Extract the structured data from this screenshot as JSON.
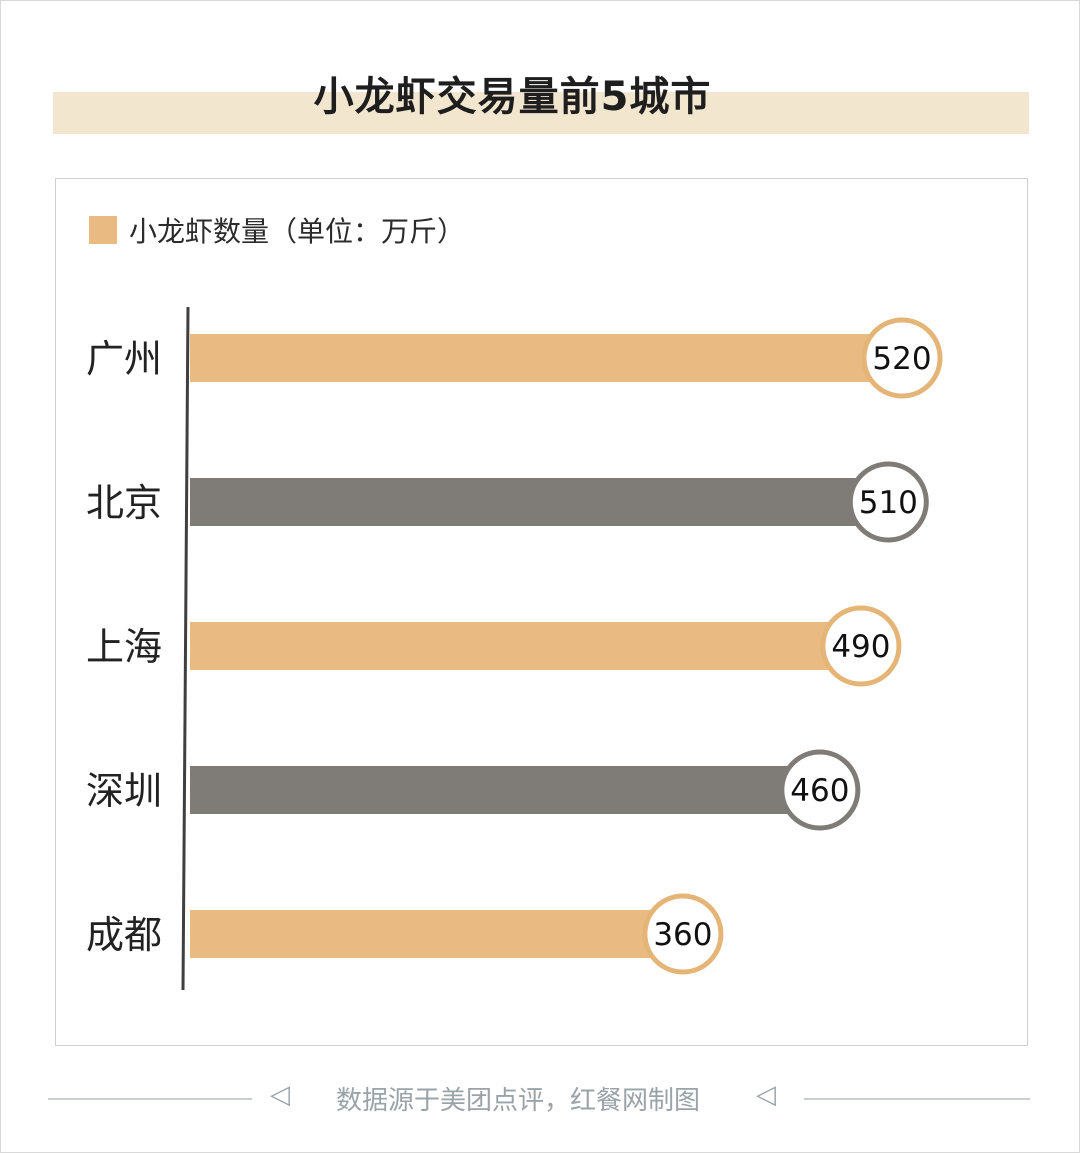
{
  "title": "小龙虾交易量前5城市",
  "legend": {
    "label": "小龙虾数量（单位：万斤）"
  },
  "footer": {
    "source": "数据源于美团点评，红餐网制图",
    "left_icon": "play-outline-icon",
    "right_icon": "play-outline-reverse-icon"
  },
  "colors": {
    "orange": "#e9bb83",
    "gray": "#7f7b77",
    "orange_ring": "#e5b477",
    "gray_ring": "#7f7b77",
    "title_band": "#f3e6cf"
  },
  "chart_data": {
    "type": "bar",
    "orientation": "horizontal",
    "title": "小龙虾交易量前5城市",
    "categories": [
      "广州",
      "北京",
      "上海",
      "深圳",
      "成都"
    ],
    "series": [
      {
        "name": "小龙虾数量（单位：万斤）",
        "values": [
          520,
          510,
          490,
          460,
          360
        ]
      }
    ],
    "data_labels": [
      "520",
      "510",
      "490",
      "460",
      "360"
    ],
    "bar_colors": [
      "#e9bb83",
      "#7f7b77",
      "#e9bb83",
      "#7f7b77",
      "#e9bb83"
    ],
    "ring_colors": [
      "#e5b477",
      "#7f7b77",
      "#e5b477",
      "#7f7b77",
      "#e5b477"
    ],
    "xlim": [
      0,
      520
    ],
    "grid": false,
    "legend_position": "top-left"
  }
}
